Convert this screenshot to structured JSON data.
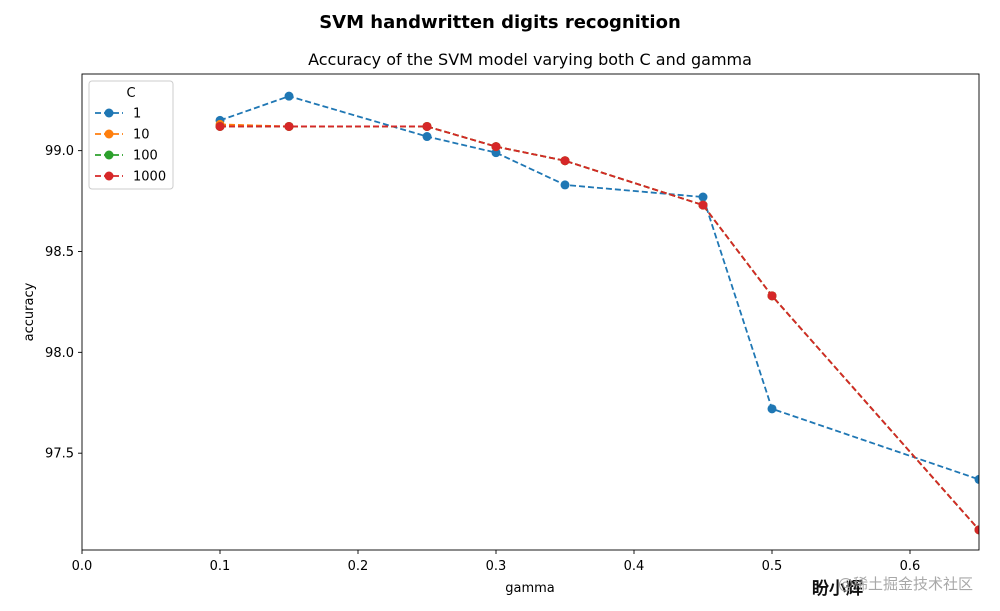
{
  "chart_data": {
    "type": "line",
    "suptitle": "SVM handwritten digits recognition",
    "title": "Accuracy of the SVM model varying both C and gamma",
    "xlabel": "gamma",
    "ylabel": "accuracy",
    "xlim": [
      0.0,
      0.65
    ],
    "ylim": [
      97.02,
      99.38
    ],
    "xticks": [
      "0.0",
      "0.1",
      "0.2",
      "0.3",
      "0.4",
      "0.5",
      "0.6"
    ],
    "yticks": [
      "97.5",
      "98.0",
      "98.5",
      "99.0"
    ],
    "grid": false,
    "legend": {
      "title": "C",
      "position": "top-left"
    },
    "x": [
      0.1,
      0.15,
      0.25,
      0.3,
      0.35,
      0.45,
      0.5,
      0.65
    ],
    "series": [
      {
        "name": "1",
        "color": "#1f77b4",
        "linestyle": "dashed",
        "marker": "circle",
        "values": [
          99.15,
          99.27,
          99.07,
          98.99,
          98.83,
          98.77,
          97.72,
          97.37
        ]
      },
      {
        "name": "10",
        "color": "#ff7f0e",
        "linestyle": "dashed",
        "marker": "circle",
        "values": [
          99.13,
          99.12,
          99.12,
          99.02,
          98.95,
          98.73,
          98.28,
          97.12
        ]
      },
      {
        "name": "100",
        "color": "#2ca02c",
        "linestyle": "dashed",
        "marker": "circle",
        "values": [
          99.12,
          99.12,
          99.12,
          99.02,
          98.95,
          98.73,
          98.28,
          97.12
        ]
      },
      {
        "name": "1000",
        "color": "#d62728",
        "linestyle": "dashed",
        "marker": "circle",
        "values": [
          99.12,
          99.12,
          99.12,
          99.02,
          98.95,
          98.73,
          98.28,
          97.12
        ]
      }
    ]
  },
  "watermark": {
    "signature": "盼小辉",
    "site": "@稀土掘金技术社区"
  }
}
